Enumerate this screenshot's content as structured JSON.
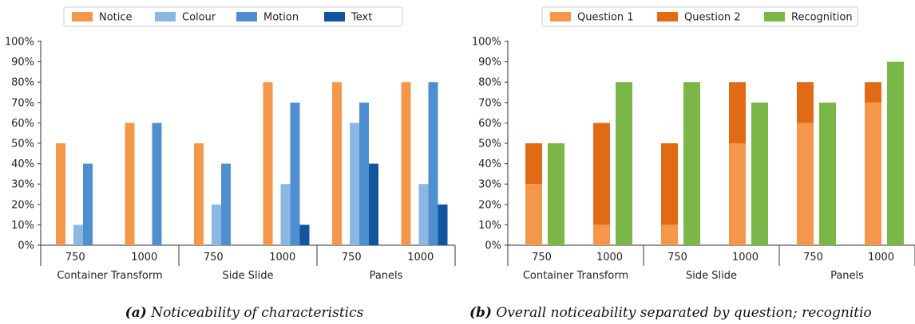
{
  "chart_data": [
    {
      "type": "bar",
      "caption_label": "(a)",
      "caption_text": "Noticeability of characteristics",
      "legend_placement": "top",
      "ylim": [
        0,
        100
      ],
      "yticks": [
        "0%",
        "10%",
        "20%",
        "30%",
        "40%",
        "50%",
        "60%",
        "70%",
        "80%",
        "90%",
        "100%"
      ],
      "groups": [
        "Container Transform",
        "Side Slide",
        "Panels"
      ],
      "categories": [
        "750",
        "1000",
        "750",
        "1000",
        "750",
        "1000"
      ],
      "series": [
        {
          "name": "Notice",
          "color": "#f5974a",
          "values": [
            50,
            60,
            50,
            80,
            80,
            80
          ]
        },
        {
          "name": "Colour",
          "color": "#8bb8e3",
          "values": [
            10,
            0,
            20,
            30,
            60,
            30
          ]
        },
        {
          "name": "Motion",
          "color": "#4f8fd0",
          "values": [
            40,
            60,
            40,
            70,
            70,
            80
          ]
        },
        {
          "name": "Text",
          "color": "#11559e",
          "values": [
            0,
            0,
            0,
            10,
            40,
            20
          ]
        }
      ]
    },
    {
      "type": "bar",
      "caption_label": "(b)",
      "caption_text": "Overall noticeability separated by question; recognitio",
      "legend_placement": "top",
      "ylim": [
        0,
        100
      ],
      "yticks": [
        "0%",
        "10%",
        "20%",
        "30%",
        "40%",
        "50%",
        "60%",
        "70%",
        "80%",
        "90%",
        "100%"
      ],
      "groups": [
        "Container Transform",
        "Side Slide",
        "Panels"
      ],
      "categories": [
        "750",
        "1000",
        "750",
        "1000",
        "750",
        "1000"
      ],
      "series": [
        {
          "name": "Question 1",
          "color": "#f5974a",
          "stacked": true,
          "values": [
            30,
            10,
            10,
            50,
            60,
            70
          ]
        },
        {
          "name": "Question 2",
          "color": "#e06b14",
          "stacked": true,
          "values": [
            20,
            50,
            40,
            30,
            20,
            10
          ]
        },
        {
          "name": "Recognition",
          "color": "#7ab648",
          "values": [
            50,
            80,
            80,
            70,
            70,
            90
          ]
        }
      ]
    }
  ]
}
